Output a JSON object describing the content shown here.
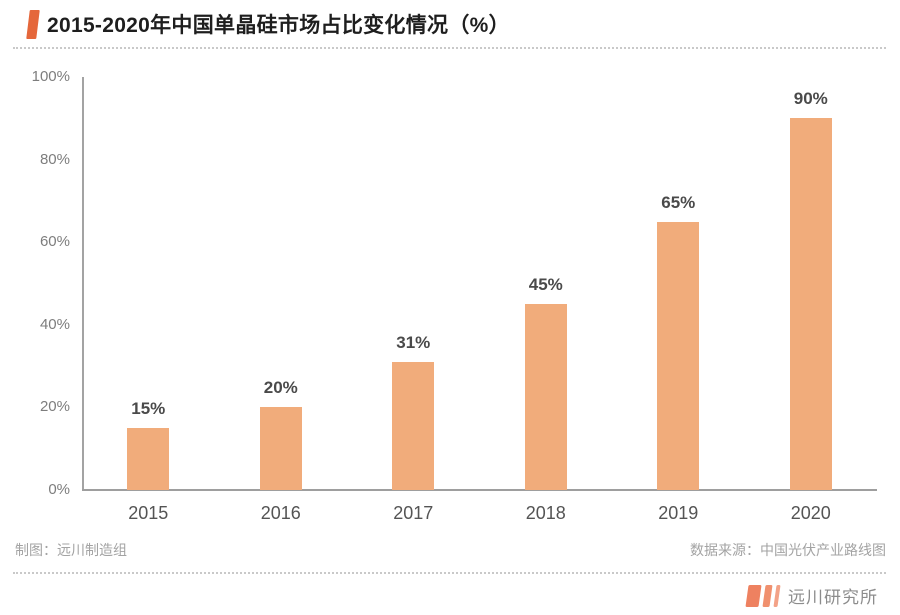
{
  "header": {
    "title": "2015-2020年中国单晶硅市场占比变化情况（%）"
  },
  "chart_data": {
    "type": "bar",
    "title": "2015-2020年中国单晶硅市场占比变化情况（%）",
    "categories": [
      "2015",
      "2016",
      "2017",
      "2018",
      "2019",
      "2020"
    ],
    "values": [
      15,
      20,
      31,
      45,
      65,
      90
    ],
    "value_labels": [
      "15%",
      "20%",
      "31%",
      "45%",
      "65%",
      "90%"
    ],
    "xlabel": "",
    "ylabel": "",
    "ylim": [
      0,
      100
    ],
    "yticks": [
      "0%",
      "20%",
      "40%",
      "60%",
      "80%",
      "100%"
    ],
    "ytick_values": [
      0,
      20,
      40,
      60,
      80,
      100
    ],
    "grid": false,
    "legend": null,
    "bar_color": "#F1AC7B"
  },
  "footer": {
    "credit_left": "制图：远川制造组",
    "source_right": "数据来源：中国光伏产业路线图",
    "brand": "远川研究所"
  },
  "colors": {
    "accent": "#E5673B",
    "bar": "#F1AC7B",
    "axis": "#9e9e9e",
    "logo": "#EE8160"
  }
}
